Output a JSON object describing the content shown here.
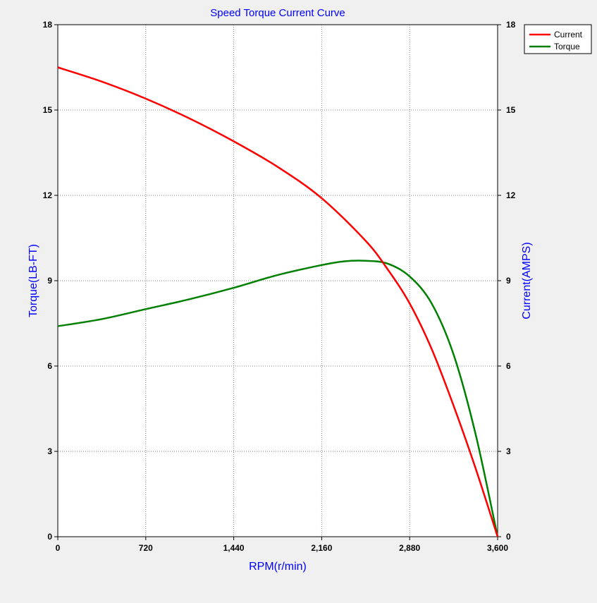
{
  "colors": {
    "background": "#f0f0f0",
    "plot_background": "#ffffff",
    "title": "#0000ff",
    "axis_label": "#0000ff",
    "grid": "#808080",
    "axis": "#000000",
    "current": "#ff0000",
    "torque": "#008000"
  },
  "chart_data": {
    "type": "line",
    "title": "Speed Torque Current Curve",
    "xlabel": "RPM(r/min)",
    "ylabel_left": "Torque(LB-FT)",
    "ylabel_right": "Current(AMPS)",
    "xlim": [
      0,
      3600
    ],
    "ylim_left": [
      0,
      18
    ],
    "ylim_right": [
      0,
      18
    ],
    "x_ticks": [
      0,
      720,
      1440,
      2160,
      2880,
      3600
    ],
    "x_tick_labels": [
      "0",
      "720",
      "1,440",
      "2,160",
      "2,880",
      "3,600"
    ],
    "y_ticks": [
      0,
      3,
      6,
      9,
      12,
      15,
      18
    ],
    "y_tick_labels": [
      "0",
      "3",
      "6",
      "9",
      "12",
      "15",
      "18"
    ],
    "grid": true,
    "legend_position": "top-right",
    "series": [
      {
        "name": "Current",
        "axis": "right",
        "x": [
          0,
          360,
          720,
          1080,
          1440,
          1800,
          2160,
          2520,
          2700,
          2880,
          3060,
          3240,
          3420,
          3600
        ],
        "y": [
          16.5,
          16.0,
          15.4,
          14.7,
          13.9,
          13.0,
          11.9,
          10.4,
          9.4,
          8.2,
          6.6,
          4.6,
          2.4,
          0
        ]
      },
      {
        "name": "Torque",
        "axis": "left",
        "x": [
          0,
          360,
          720,
          1080,
          1440,
          1800,
          2160,
          2340,
          2520,
          2700,
          2880,
          3060,
          3240,
          3420,
          3600
        ],
        "y": [
          7.4,
          7.65,
          8.0,
          8.35,
          8.75,
          9.2,
          9.55,
          9.68,
          9.7,
          9.6,
          9.15,
          8.2,
          6.4,
          3.6,
          0
        ]
      }
    ]
  }
}
